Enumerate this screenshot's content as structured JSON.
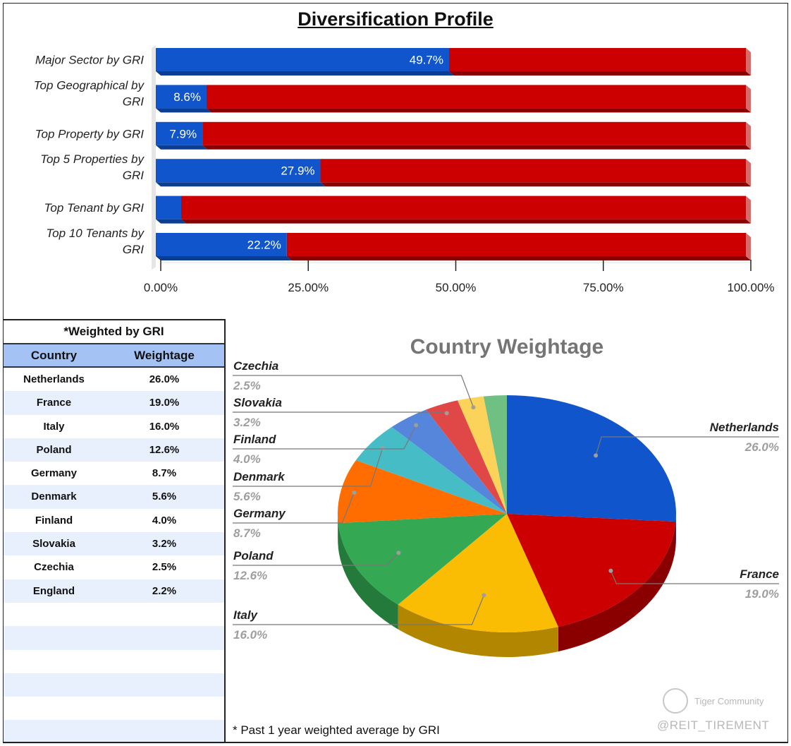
{
  "title": "Diversification Profile",
  "chart_data": [
    {
      "type": "bar",
      "orientation": "horizontal",
      "stacked": "100%",
      "title": "Diversification Profile",
      "categories": [
        "Major Sector by GRI",
        "Top Geographical by GRI",
        "Top Property by GRI",
        "Top 5 Properties by GRI",
        "Top Tenant by GRI",
        "Top 10 Tenants by GRI"
      ],
      "category_lines": [
        [
          "Major Sector by GRI"
        ],
        [
          "Top Geographical by",
          "GRI"
        ],
        [
          "Top Property by GRI"
        ],
        [
          "Top 5 Properties by",
          "GRI"
        ],
        [
          "Top Tenant by GRI"
        ],
        [
          "Top 10 Tenants by",
          "GRI"
        ]
      ],
      "series": [
        {
          "values": [
            49.7,
            8.6,
            7.9,
            27.9,
            4.3,
            22.2
          ],
          "color": "#1155cc",
          "labels": [
            "49.7%",
            "8.6%",
            "7.9%",
            "27.9%",
            "4.3%",
            "22.2%"
          ]
        },
        {
          "values": [
            50.3,
            91.4,
            92.1,
            72.1,
            95.7,
            77.8
          ],
          "color": "#cc0000"
        }
      ],
      "xlim": [
        0,
        100
      ],
      "xticks": [
        "0.00%",
        "25.00%",
        "50.00%",
        "75.00%",
        "100.00%"
      ],
      "grid": false,
      "legend": "none"
    },
    {
      "type": "pie",
      "style": "3d",
      "title": "Country Weightage",
      "slices": [
        {
          "label": "Netherlands",
          "value": 26.0,
          "display": "26.0%",
          "color": "#1155cc",
          "dark": "#0b3d91"
        },
        {
          "label": "France",
          "value": 19.0,
          "display": "19.0%",
          "color": "#cc0000",
          "dark": "#8a0000"
        },
        {
          "label": "Italy",
          "value": 16.0,
          "display": "16.0%",
          "color": "#fbbc04",
          "dark": "#b38600"
        },
        {
          "label": "Poland",
          "value": 12.6,
          "display": "12.6%",
          "color": "#34a853",
          "dark": "#237a3b"
        },
        {
          "label": "Germany",
          "value": 8.7,
          "display": "8.7%",
          "color": "#ff6d01",
          "dark": "#b34c00"
        },
        {
          "label": "Denmark",
          "value": 5.6,
          "display": "5.6%",
          "color": "#46bdc6",
          "dark": "#2e8a91"
        },
        {
          "label": "Finland",
          "value": 4.0,
          "display": "4.0%",
          "color": "#5686dc",
          "dark": "#3a5fa3"
        },
        {
          "label": "Slovakia",
          "value": 3.2,
          "display": "3.2%",
          "color": "#e04848",
          "dark": "#a03030"
        },
        {
          "label": "Czechia",
          "value": 2.5,
          "display": "2.5%",
          "color": "#fbd25a",
          "dark": "#b89a3d"
        },
        {
          "label": "England",
          "value": 2.2,
          "display": "2.2%",
          "color": "#70c084",
          "dark": "#4e8a5c"
        }
      ],
      "legend": "none"
    }
  ],
  "table": {
    "title": "*Weighted by GRI",
    "headers": [
      "Country",
      "Weightage"
    ],
    "rows": [
      [
        "Netherlands",
        "26.0%"
      ],
      [
        "France",
        "19.0%"
      ],
      [
        "Italy",
        "16.0%"
      ],
      [
        "Poland",
        "12.6%"
      ],
      [
        "Germany",
        "8.7%"
      ],
      [
        "Denmark",
        "5.6%"
      ],
      [
        "Finland",
        "4.0%"
      ],
      [
        "Slovakia",
        "3.2%"
      ],
      [
        "Czechia",
        "2.5%"
      ],
      [
        "England",
        "2.2%"
      ],
      [
        "",
        ""
      ],
      [
        "",
        ""
      ],
      [
        "",
        ""
      ],
      [
        "",
        ""
      ],
      [
        "",
        ""
      ],
      [
        "",
        ""
      ]
    ]
  },
  "footnote": "* Past 1 year weighted average by GRI",
  "watermark": {
    "community": "Tiger Community",
    "handle": "@REIT_TIREMENT"
  }
}
